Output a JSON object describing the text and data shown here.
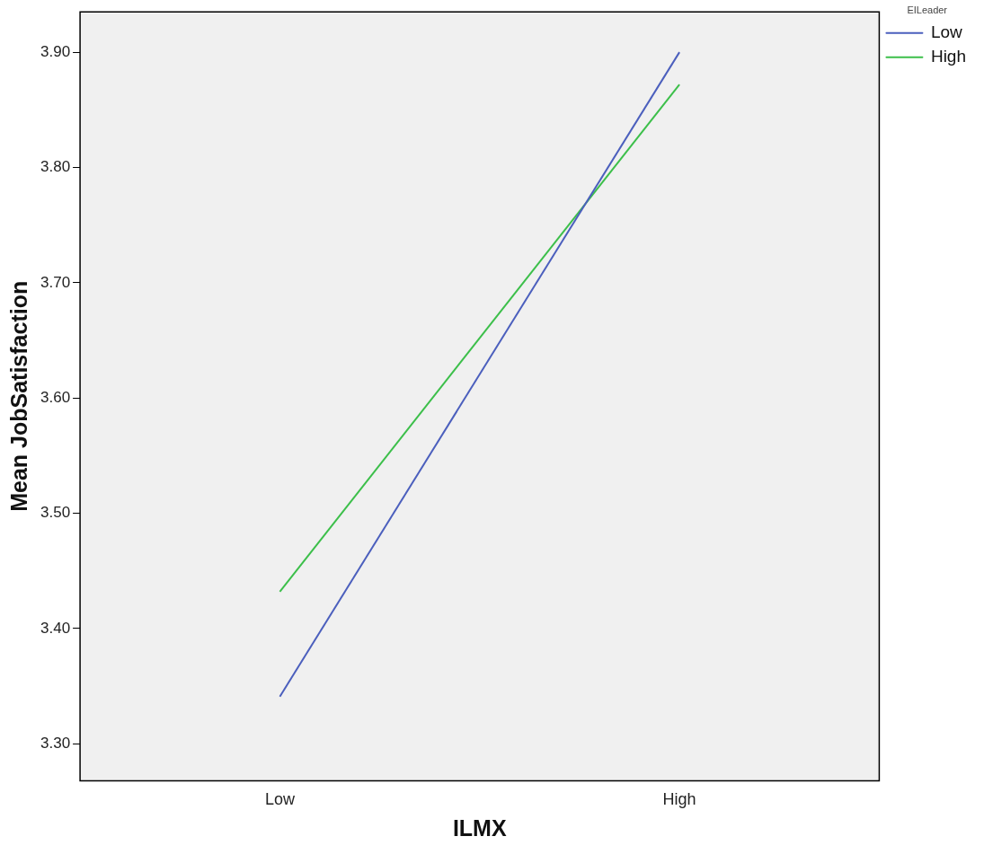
{
  "chart_data": {
    "type": "line",
    "xlabel": "ILMX",
    "ylabel": "Mean JobSatisfaction",
    "legend_title": "EILeader",
    "categories": [
      "Low",
      "High"
    ],
    "series": [
      {
        "name": "Low",
        "color": "#4b5fbd",
        "values": [
          3.341,
          3.9
        ]
      },
      {
        "name": "High",
        "color": "#3cbf4a",
        "values": [
          3.432,
          3.872
        ]
      }
    ],
    "ylim": [
      3.268,
      3.935
    ],
    "yticks": [
      {
        "value": 3.3,
        "label": "3.30"
      },
      {
        "value": 3.4,
        "label": "3.40"
      },
      {
        "value": 3.5,
        "label": "3.50"
      },
      {
        "value": 3.6,
        "label": "3.60"
      },
      {
        "value": 3.7,
        "label": "3.70"
      },
      {
        "value": 3.8,
        "label": "3.80"
      },
      {
        "value": 3.9,
        "label": "3.90"
      }
    ],
    "grid": false,
    "legend": "top right",
    "marker": "none",
    "line_style": "solid"
  }
}
